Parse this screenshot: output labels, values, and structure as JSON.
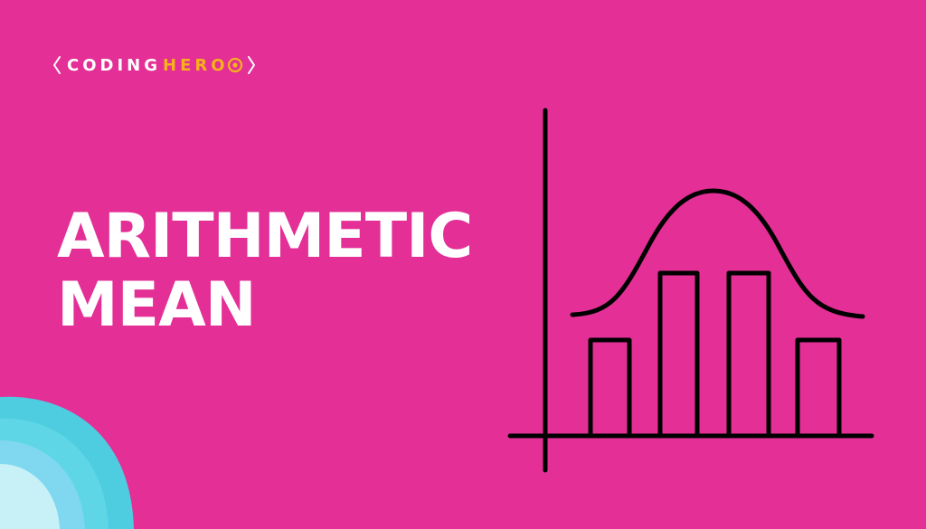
{
  "brand": {
    "part1": "CODING",
    "part2": "HERO",
    "accent_color": "#f6b21b",
    "text_color": "#ffffff"
  },
  "title": {
    "line1": "ARITHMETIC",
    "line2": "MEAN"
  },
  "colors": {
    "background": "#e32f96",
    "corner_outer": "#4ecde0",
    "corner_middle": "#5fd6e6",
    "corner_inner": "#7fd8f0",
    "corner_core": "#c7f1f7",
    "illustration_stroke": "#000000"
  },
  "icons": {
    "logo_brackets": "angle-bracket-icon",
    "logo_o": "target-circle-icon",
    "illustration": "histogram-bell-curve-icon"
  }
}
